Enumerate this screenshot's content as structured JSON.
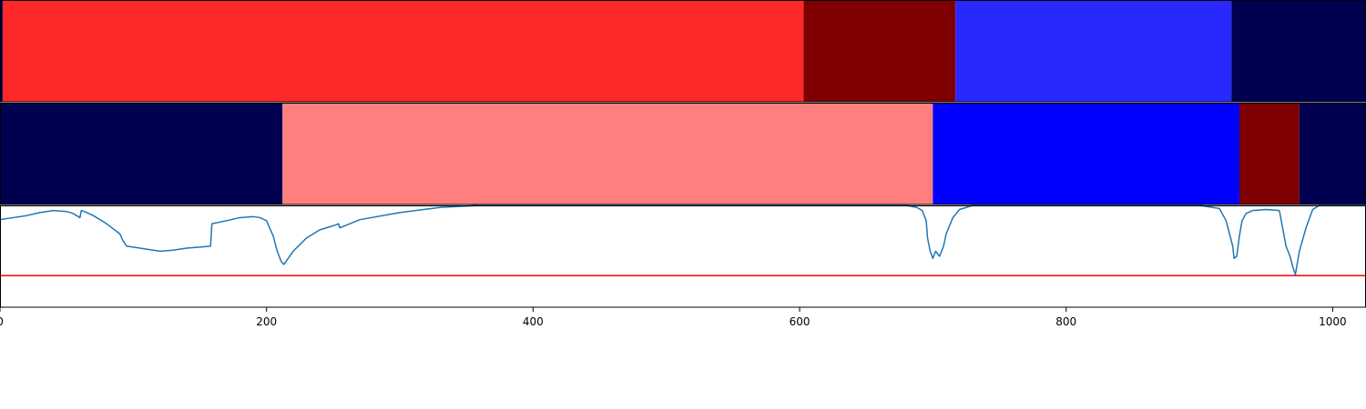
{
  "chart_data": {
    "type": "segment-track-line",
    "x_axis": {
      "range": [
        0,
        1025
      ],
      "ticks": [
        0,
        200,
        400,
        600,
        800,
        1000
      ],
      "tick_labels": [
        "0",
        "200",
        "400",
        "600",
        "800",
        "1000"
      ]
    },
    "segment_tracks": [
      {
        "segments": [
          {
            "start": 0,
            "end": 2,
            "color": "#000050"
          },
          {
            "start": 2,
            "end": 603,
            "color": "#ff2828"
          },
          {
            "start": 603,
            "end": 717,
            "color": "#7f0000"
          },
          {
            "start": 717,
            "end": 924,
            "color": "#2828ff"
          },
          {
            "start": 924,
            "end": 1025,
            "color": "#000050"
          }
        ]
      },
      {
        "segments": [
          {
            "start": 0,
            "end": 212,
            "color": "#000050"
          },
          {
            "start": 212,
            "end": 700,
            "color": "#ff7f7f"
          },
          {
            "start": 700,
            "end": 930,
            "color": "#0000ff"
          },
          {
            "start": 930,
            "end": 975,
            "color": "#7f0000"
          },
          {
            "start": 975,
            "end": 1025,
            "color": "#000050"
          }
        ]
      }
    ],
    "line_panel": {
      "ylim": [
        0,
        1
      ],
      "line_color": "#1f77b4",
      "threshold": {
        "value": 0.31,
        "color": "#ff0000"
      },
      "x": [
        0,
        10,
        20,
        30,
        40,
        50,
        55,
        60,
        61,
        65,
        70,
        80,
        90,
        92,
        95,
        100,
        110,
        120,
        130,
        140,
        150,
        158,
        159,
        170,
        180,
        190,
        195,
        200,
        205,
        208,
        211,
        213,
        220,
        230,
        240,
        250,
        254,
        255,
        270,
        300,
        330,
        360,
        400,
        500,
        600,
        680,
        688,
        692,
        695,
        696,
        698,
        700,
        702,
        705,
        708,
        710,
        715,
        720,
        730,
        760,
        900,
        915,
        920,
        925,
        926,
        928,
        930,
        932,
        935,
        940,
        950,
        960,
        965,
        968,
        970,
        972,
        975,
        980,
        985,
        990,
        1000,
        1025
      ],
      "y": [
        0.86,
        0.88,
        0.9,
        0.93,
        0.95,
        0.94,
        0.92,
        0.88,
        0.95,
        0.93,
        0.9,
        0.82,
        0.72,
        0.66,
        0.6,
        0.59,
        0.57,
        0.55,
        0.56,
        0.58,
        0.59,
        0.6,
        0.82,
        0.85,
        0.88,
        0.89,
        0.88,
        0.85,
        0.7,
        0.55,
        0.45,
        0.42,
        0.55,
        0.68,
        0.76,
        0.8,
        0.82,
        0.78,
        0.86,
        0.93,
        0.98,
        1.0,
        1.0,
        1.0,
        1.0,
        1.0,
        0.98,
        0.95,
        0.85,
        0.68,
        0.55,
        0.48,
        0.55,
        0.5,
        0.6,
        0.72,
        0.88,
        0.96,
        1.0,
        1.0,
        1.0,
        0.97,
        0.85,
        0.6,
        0.48,
        0.5,
        0.7,
        0.85,
        0.92,
        0.95,
        0.96,
        0.95,
        0.6,
        0.5,
        0.4,
        0.32,
        0.55,
        0.78,
        0.96,
        1.0,
        1.0,
        1.0
      ]
    }
  }
}
